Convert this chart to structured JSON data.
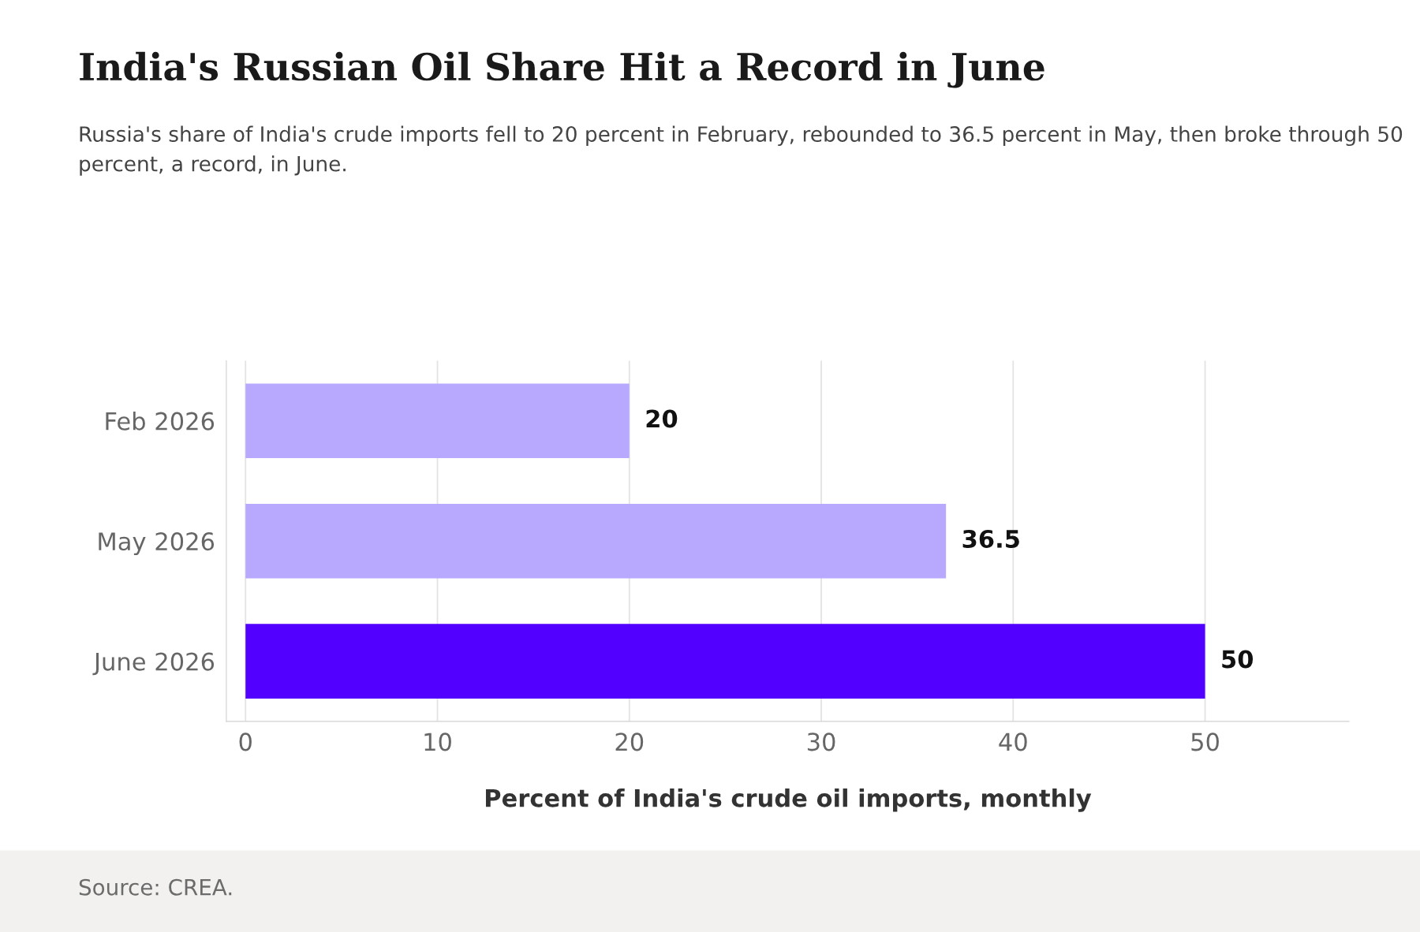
{
  "chart_data": {
    "type": "bar",
    "orientation": "horizontal",
    "title": "India's Russian Oil Share Hit a Record in June",
    "subtitle": "Russia's share of India's crude imports fell to 20 percent in February, rebounded to 36.5 percent in May, then broke through 50 percent, a record, in June.",
    "categories": [
      "Feb 2026",
      "May 2026",
      "June 2026"
    ],
    "values": [
      20,
      36.5,
      50
    ],
    "colors": [
      "#b8a9ff",
      "#b8a9ff",
      "#5200ff"
    ],
    "xlabel": "Percent of India's crude oil imports, monthly",
    "xlim": [
      -1,
      57.5
    ],
    "xticks": [
      0,
      10,
      20,
      30,
      40,
      50
    ],
    "grid": "x",
    "data_labels": true,
    "legend": false,
    "annotations": [
      "Source: CREA."
    ]
  }
}
